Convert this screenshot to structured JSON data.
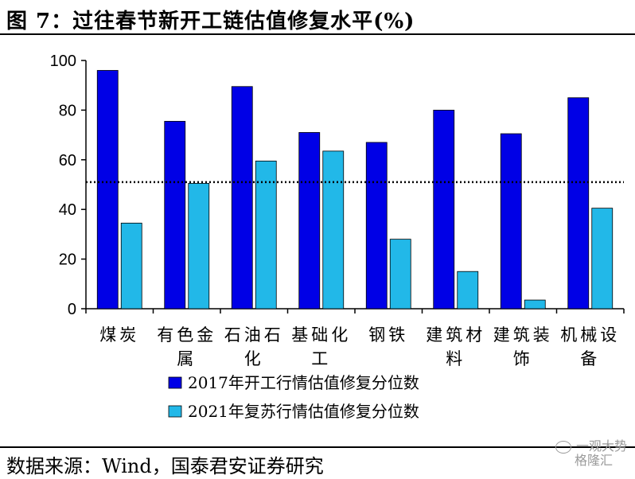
{
  "title": "图 7：过往春节新开工链估值修复水平(%)",
  "source": "数据来源：Wind，国泰君安证券研究",
  "watermark": {
    "line1": "一观大势",
    "line2": "格隆汇"
  },
  "colors": {
    "series1": "#0000e6",
    "series2": "#22b8e8",
    "bar_edge": "#000000",
    "reference": "#000000"
  },
  "chart_data": {
    "type": "bar",
    "categories": [
      "煤炭",
      "有色金属",
      "石油石化",
      "基础化工",
      "钢铁",
      "建筑材料",
      "建筑装饰",
      "机械设备"
    ],
    "category_lines": [
      [
        "煤炭"
      ],
      [
        "有色金",
        "属"
      ],
      [
        "石油石",
        "化"
      ],
      [
        "基础化",
        "工"
      ],
      [
        "钢铁"
      ],
      [
        "建筑材",
        "料"
      ],
      [
        "建筑装",
        "饰"
      ],
      [
        "机械设",
        "备"
      ]
    ],
    "series": [
      {
        "name": "2017年开工行情估值修复分位数",
        "values": [
          96,
          75.5,
          89.5,
          71,
          67,
          80,
          70.5,
          85
        ]
      },
      {
        "name": "2021年复苏行情估值修复分位数",
        "values": [
          34.5,
          50.5,
          59.5,
          63.5,
          28,
          15,
          3.5,
          40.5
        ]
      }
    ],
    "ylim": [
      0,
      100
    ],
    "yticks": [
      0,
      20,
      40,
      60,
      80,
      100
    ],
    "reference_line": 51,
    "grid": false,
    "legend_position": "bottom"
  }
}
